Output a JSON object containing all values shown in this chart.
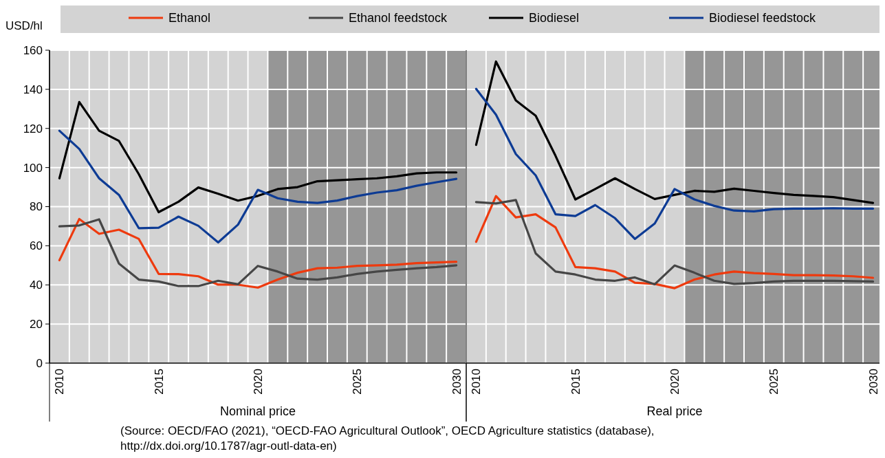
{
  "chart_data": [
    {
      "type": "line",
      "xlabel": "Nominal price",
      "ylabel": "USD/hl",
      "legend": "top",
      "grid": true,
      "tick_labels": "xy",
      "line_style": "solid",
      "marker": "none",
      "x": [
        2010,
        2011,
        2012,
        2013,
        2014,
        2015,
        2016,
        2017,
        2018,
        2019,
        2020,
        2021,
        2022,
        2023,
        2024,
        2025,
        2026,
        2027,
        2028,
        2029,
        2030
      ],
      "xlim": [
        2009.5,
        2030.5
      ],
      "xticks": [
        2010,
        2015,
        2020,
        2025,
        2030
      ],
      "ylim": [
        0,
        160
      ],
      "yticks": [
        0,
        20,
        40,
        60,
        80,
        100,
        120,
        140,
        160
      ],
      "bands": [
        {
          "axis": "x",
          "from": 2020.5,
          "to": 2030.5,
          "color": "#969696"
        }
      ],
      "series": [
        {
          "name": "Ethanol",
          "color": "#ee3a0e",
          "values": [
            52.6,
            73.7,
            66.1,
            68.2,
            63.5,
            45.6,
            45.5,
            44.4,
            40.1,
            40.1,
            38.6,
            42.7,
            46.2,
            48.5,
            48.8,
            49.7,
            50,
            50.3,
            51.1,
            51.5,
            51.8
          ]
        },
        {
          "name": "Ethanol feedstock",
          "color": "#464646",
          "values": [
            69.9,
            70.4,
            73.5,
            50.9,
            42.7,
            41.7,
            39.4,
            39.4,
            42.1,
            40.3,
            49.7,
            46.8,
            43.2,
            42.7,
            43.8,
            45.6,
            46.8,
            47.7,
            48.5,
            49.1,
            50
          ]
        },
        {
          "name": "Biodiesel",
          "color": "#000000",
          "values": [
            94.5,
            133.5,
            118.8,
            113.6,
            96.6,
            77.2,
            82.5,
            89.8,
            86.6,
            83.1,
            85.5,
            89,
            90,
            93,
            93.5,
            94,
            94.5,
            95.5,
            97,
            97.5,
            97.5
          ]
        },
        {
          "name": "Biodiesel feedstock",
          "color": "#0d3b94",
          "values": [
            118.8,
            109.5,
            94.5,
            86,
            69,
            69.2,
            74.9,
            70.2,
            61.7,
            70.8,
            88.6,
            84.3,
            82.5,
            81.9,
            83.1,
            85.4,
            87.2,
            88.4,
            90.7,
            92.5,
            94.2
          ]
        }
      ],
      "annotations": [
        "(Source: OECD/FAO (2021), “OECD-FAO Agricultural Outlook”, OECD Agriculture statistics (database), http://dx.doi.org/10.1787/agr-outl-data-en)"
      ]
    },
    {
      "type": "line",
      "xlabel": "Real price",
      "grid": true,
      "tick_labels": "x",
      "line_style": "solid",
      "marker": "none",
      "x": [
        2010,
        2011,
        2012,
        2013,
        2014,
        2015,
        2016,
        2017,
        2018,
        2019,
        2020,
        2021,
        2022,
        2023,
        2024,
        2025,
        2026,
        2027,
        2028,
        2029,
        2030
      ],
      "xlim": [
        2009.5,
        2030.5
      ],
      "xticks": [
        2010,
        2015,
        2020,
        2025,
        2030
      ],
      "ylim": [
        0,
        160
      ],
      "yticks": [
        0,
        20,
        40,
        60,
        80,
        100,
        120,
        140,
        160
      ],
      "bands": [
        {
          "axis": "x",
          "from": 2020.5,
          "to": 2030.5,
          "color": "#969696"
        }
      ],
      "series": [
        {
          "color": "#ee3a0e",
          "values": [
            62,
            85.4,
            74.5,
            76.1,
            69.4,
            49.1,
            48.5,
            46.8,
            41.1,
            40.5,
            38.3,
            42.7,
            45.3,
            46.8,
            46,
            45.6,
            45,
            45,
            44.8,
            44.4,
            43.6
          ]
        },
        {
          "color": "#464646",
          "values": [
            82.3,
            81.6,
            83.4,
            56.1,
            46.8,
            45.3,
            42.7,
            42.1,
            43.8,
            40.3,
            49.9,
            46.2,
            42.1,
            40.5,
            40.9,
            41.7,
            42.1,
            42.1,
            42.1,
            41.9,
            41.7
          ]
        },
        {
          "color": "#000000",
          "values": [
            111.6,
            154.2,
            134.3,
            126.5,
            106,
            83.7,
            89,
            94.5,
            89,
            83.9,
            86,
            88.1,
            87.6,
            89.2,
            88.1,
            87,
            86,
            85.5,
            84.9,
            83.4,
            81.9
          ]
        },
        {
          "color": "#0d3b94",
          "values": [
            140.2,
            127,
            106.9,
            96,
            76.1,
            75.2,
            80.8,
            74.1,
            63.5,
            71.4,
            89,
            83.7,
            80.4,
            78,
            77.6,
            78.7,
            79,
            79,
            79.2,
            79,
            79
          ]
        }
      ]
    }
  ]
}
